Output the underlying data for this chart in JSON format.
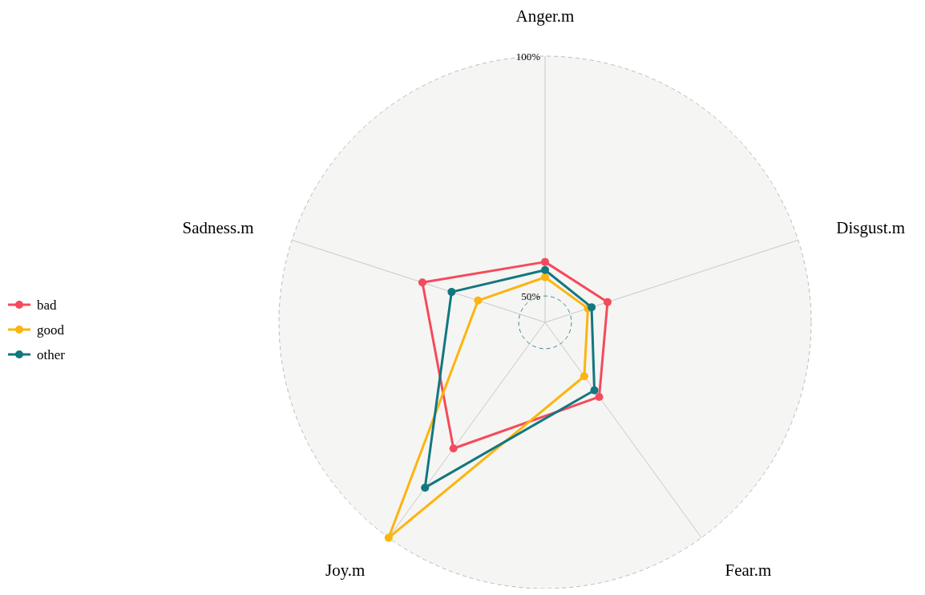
{
  "chart_data": {
    "type": "radar",
    "categories": [
      "Anger.m",
      "Disgust.m",
      "Fear.m",
      "Joy.m",
      "Sadness.m"
    ],
    "series": [
      {
        "name": "bad",
        "color": "#f44b5c",
        "values": [
          57.1,
          58.2,
          63.7,
          77.0,
          71.4
        ]
      },
      {
        "name": "good",
        "color": "#fbb50f",
        "values": [
          53.9,
          53.9,
          58.4,
          100,
          59.2
        ]
      },
      {
        "name": "other",
        "color": "#12777f",
        "values": [
          55.4,
          54.7,
          62.0,
          87.1,
          65.0
        ]
      }
    ],
    "ylim": [
      44.5,
      100
    ],
    "yticks": [
      {
        "value": 50,
        "label": "50%"
      },
      {
        "value": 100,
        "label": "100%"
      }
    ],
    "grid": true,
    "legend": "left",
    "marker": "circle",
    "line_style": "solid"
  }
}
